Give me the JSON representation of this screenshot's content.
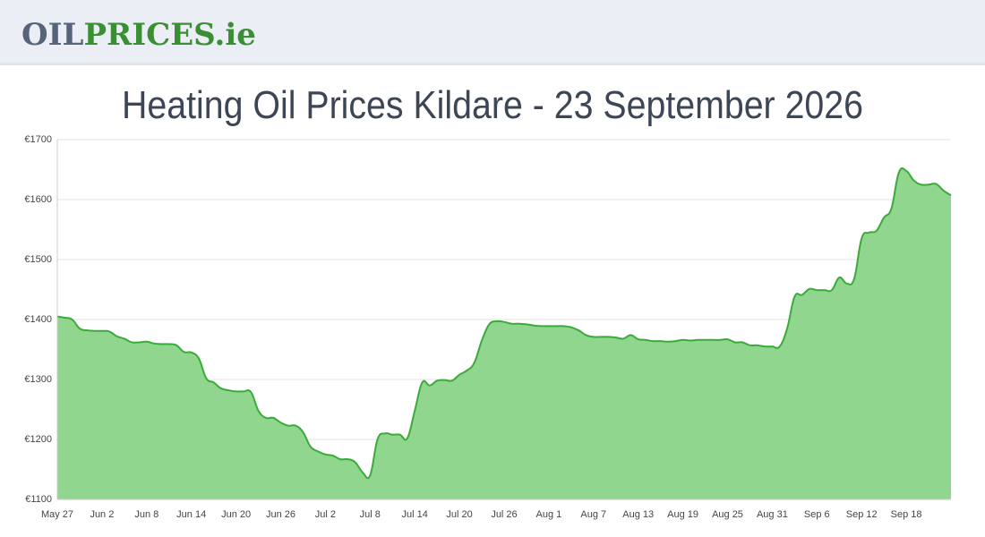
{
  "header": {
    "logo": [
      "OIL",
      "PRICES",
      ".ie"
    ]
  },
  "chart_data": {
    "type": "area",
    "title": "Heating Oil Prices Kildare - 23 September 2026",
    "categories": [
      "May 27",
      null,
      null,
      null,
      null,
      null,
      "Jun 2",
      null,
      null,
      null,
      null,
      null,
      "Jun 8",
      null,
      null,
      null,
      null,
      null,
      "Jun 14",
      null,
      null,
      null,
      null,
      null,
      "Jun 20",
      null,
      null,
      null,
      null,
      null,
      "Jun 26",
      null,
      null,
      null,
      null,
      null,
      "Jul 2",
      null,
      null,
      null,
      null,
      null,
      "Jul 8",
      null,
      null,
      null,
      null,
      null,
      "Jul 14",
      null,
      null,
      null,
      null,
      null,
      "Jul 20",
      null,
      null,
      null,
      null,
      null,
      "Jul 26",
      null,
      null,
      null,
      null,
      null,
      "Aug 1",
      null,
      null,
      null,
      null,
      null,
      "Aug 7",
      null,
      null,
      null,
      null,
      null,
      "Aug 13",
      null,
      null,
      null,
      null,
      null,
      "Aug 19",
      null,
      null,
      null,
      null,
      null,
      "Aug 25",
      null,
      null,
      null,
      null,
      null,
      "Aug 31",
      null,
      null,
      null,
      null,
      null,
      "Sep 6",
      null,
      null,
      null,
      null,
      null,
      "Sep 12",
      null,
      null,
      null,
      null,
      null,
      "Sep 18",
      null,
      null,
      null,
      null,
      null,
      null
    ],
    "values": [
      1405,
      1403,
      1400,
      1385,
      1382,
      1381,
      1381,
      1380,
      1372,
      1368,
      1362,
      1362,
      1363,
      1360,
      1359,
      1359,
      1357,
      1346,
      1345,
      1335,
      1302,
      1295,
      1285,
      1282,
      1280,
      1280,
      1279,
      1248,
      1236,
      1236,
      1228,
      1223,
      1223,
      1212,
      1188,
      1180,
      1175,
      1173,
      1167,
      1167,
      1162,
      1145,
      1140,
      1200,
      1210,
      1208,
      1208,
      1202,
      1248,
      1295,
      1290,
      1298,
      1299,
      1298,
      1308,
      1315,
      1328,
      1365,
      1392,
      1397,
      1396,
      1393,
      1393,
      1392,
      1390,
      1389,
      1389,
      1389,
      1389,
      1387,
      1382,
      1374,
      1371,
      1371,
      1371,
      1370,
      1368,
      1374,
      1367,
      1366,
      1364,
      1364,
      1363,
      1364,
      1366,
      1365,
      1366,
      1366,
      1366,
      1366,
      1367,
      1362,
      1362,
      1357,
      1357,
      1355,
      1355,
      1355,
      1385,
      1438,
      1441,
      1451,
      1449,
      1449,
      1449,
      1470,
      1460,
      1468,
      1535,
      1545,
      1548,
      1570,
      1585,
      1645,
      1648,
      1632,
      1625,
      1625,
      1626,
      1615,
      1607
    ],
    "color": "#3aab3a",
    "fill": "#91d68e",
    "ylim": [
      1100,
      1700
    ],
    "yticks": [
      {
        "value": 1100,
        "label": "€1100"
      },
      {
        "value": 1200,
        "label": "€1200"
      },
      {
        "value": 1300,
        "label": "€1300"
      },
      {
        "value": 1400,
        "label": "€1400"
      },
      {
        "value": 1500,
        "label": "€1500"
      },
      {
        "value": 1600,
        "label": "€1600"
      },
      {
        "value": 1700,
        "label": "€1700"
      }
    ],
    "grid": true
  }
}
